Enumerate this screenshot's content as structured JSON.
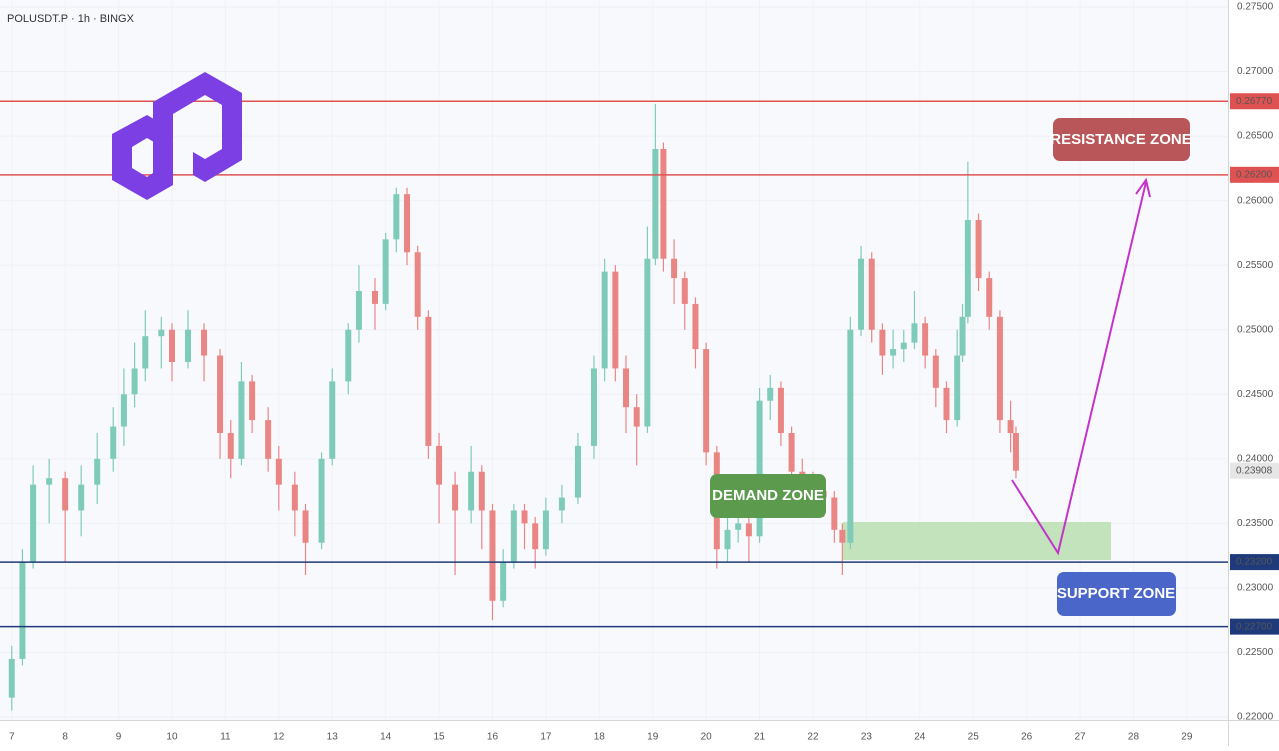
{
  "chart_data": {
    "type": "candlestick",
    "title": "POLUSDT.P · 1h · BINGX",
    "xlim": [
      6.78,
      29.77
    ],
    "xticks": [
      7,
      8,
      9,
      10,
      11,
      12,
      13,
      14,
      15,
      16,
      17,
      18,
      19,
      20,
      21,
      22,
      23,
      24,
      25,
      26,
      27,
      28,
      29
    ],
    "ylim": [
      0.22,
      0.275
    ],
    "yticks": [
      {
        "value": 0.22,
        "label": "0.22000"
      },
      {
        "value": 0.225,
        "label": "0.22500"
      },
      {
        "value": 0.23,
        "label": "0.23000"
      },
      {
        "value": 0.235,
        "label": "0.23500"
      },
      {
        "value": 0.24,
        "label": "0.24000"
      },
      {
        "value": 0.245,
        "label": "0.24500"
      },
      {
        "value": 0.25,
        "label": "0.25000"
      },
      {
        "value": 0.255,
        "label": "0.25500"
      },
      {
        "value": 0.26,
        "label": "0.26000"
      },
      {
        "value": 0.265,
        "label": "0.26500"
      },
      {
        "value": 0.27,
        "label": "0.27000"
      },
      {
        "value": 0.275,
        "label": "0.27500"
      }
    ],
    "up_color": "#7fcbb9",
    "down_color": "#e98683",
    "levels": [
      {
        "value": 0.2677,
        "label": "0.26770",
        "color": "#e05252"
      },
      {
        "value": 0.262,
        "label": "0.26200",
        "color": "#e05252"
      },
      {
        "value": 0.232,
        "label": "0.23200",
        "color": "#1f3a7a"
      },
      {
        "value": 0.227,
        "label": "0.22700",
        "color": "#1f3a7a"
      }
    ],
    "last_price": {
      "value": 0.23908,
      "label": "0.23908",
      "color": "#e6e6e6"
    },
    "annotations": [
      "RESISTANCE ZONE",
      "SUPPORT ZONE",
      "DEMAND ZONE"
    ],
    "x": [
      7.0,
      7.2,
      7.4,
      7.7,
      8.0,
      8.3,
      8.6,
      8.9,
      9.1,
      9.3,
      9.5,
      9.8,
      10.0,
      10.3,
      10.6,
      10.9,
      11.1,
      11.3,
      11.5,
      11.8,
      12.0,
      12.3,
      12.5,
      12.8,
      13.0,
      13.3,
      13.5,
      13.8,
      14.0,
      14.2,
      14.4,
      14.6,
      14.8,
      15.0,
      15.3,
      15.6,
      15.8,
      16.0,
      16.2,
      16.4,
      16.6,
      16.8,
      17.0,
      17.3,
      17.6,
      17.9,
      18.1,
      18.3,
      18.5,
      18.7,
      18.9,
      19.05,
      19.2,
      19.4,
      19.6,
      19.8,
      20.0,
      20.2,
      20.4,
      20.6,
      20.8,
      21.0,
      21.2,
      21.4,
      21.6,
      21.8,
      22.0,
      22.2,
      22.4,
      22.55,
      22.7,
      22.9,
      23.1,
      23.3,
      23.5,
      23.7,
      23.9,
      24.1,
      24.3,
      24.5,
      24.7,
      24.8,
      24.9,
      25.1,
      25.3,
      25.5,
      25.7,
      25.8
    ],
    "open": [
      0.2215,
      0.2245,
      0.232,
      0.238,
      0.2385,
      0.236,
      0.238,
      0.24,
      0.2425,
      0.245,
      0.247,
      0.2495,
      0.25,
      0.2475,
      0.25,
      0.248,
      0.242,
      0.24,
      0.246,
      0.243,
      0.24,
      0.238,
      0.236,
      0.2335,
      0.24,
      0.246,
      0.25,
      0.253,
      0.252,
      0.257,
      0.2605,
      0.256,
      0.251,
      0.241,
      0.238,
      0.236,
      0.239,
      0.236,
      0.229,
      0.232,
      0.236,
      0.235,
      0.233,
      0.236,
      0.237,
      0.241,
      0.247,
      0.2545,
      0.247,
      0.244,
      0.2425,
      0.2555,
      0.264,
      0.2555,
      0.254,
      0.252,
      0.2485,
      0.2405,
      0.233,
      0.2345,
      0.235,
      0.234,
      0.2445,
      0.2455,
      0.242,
      0.239,
      0.238,
      0.2375,
      0.237,
      0.2345,
      0.2335,
      0.25,
      0.2555,
      0.25,
      0.248,
      0.2485,
      0.249,
      0.2505,
      0.248,
      0.2455,
      0.243,
      0.248,
      0.251,
      0.2585,
      0.254,
      0.251,
      0.243,
      0.242
    ],
    "high": [
      0.2255,
      0.233,
      0.2395,
      0.24,
      0.239,
      0.2395,
      0.242,
      0.244,
      0.247,
      0.249,
      0.2515,
      0.251,
      0.2505,
      0.2515,
      0.2505,
      0.2485,
      0.243,
      0.2475,
      0.2465,
      0.244,
      0.241,
      0.239,
      0.2365,
      0.2405,
      0.247,
      0.2505,
      0.255,
      0.254,
      0.2575,
      0.261,
      0.261,
      0.2565,
      0.2515,
      0.242,
      0.239,
      0.241,
      0.2395,
      0.2365,
      0.233,
      0.2365,
      0.2365,
      0.2355,
      0.237,
      0.238,
      0.242,
      0.248,
      0.2555,
      0.255,
      0.248,
      0.245,
      0.258,
      0.2675,
      0.2645,
      0.257,
      0.2545,
      0.2525,
      0.249,
      0.241,
      0.2355,
      0.236,
      0.2355,
      0.2455,
      0.2465,
      0.246,
      0.2425,
      0.24,
      0.239,
      0.238,
      0.2375,
      0.235,
      0.251,
      0.2565,
      0.256,
      0.2505,
      0.25,
      0.25,
      0.253,
      0.251,
      0.2485,
      0.246,
      0.25,
      0.252,
      0.263,
      0.259,
      0.2545,
      0.2515,
      0.2445,
      0.2425
    ],
    "low": [
      0.2205,
      0.224,
      0.2315,
      0.235,
      0.232,
      0.234,
      0.2365,
      0.239,
      0.241,
      0.244,
      0.246,
      0.247,
      0.246,
      0.247,
      0.246,
      0.24,
      0.2385,
      0.2395,
      0.242,
      0.239,
      0.236,
      0.234,
      0.231,
      0.233,
      0.2395,
      0.245,
      0.249,
      0.25,
      0.2515,
      0.256,
      0.255,
      0.25,
      0.24,
      0.235,
      0.231,
      0.235,
      0.233,
      0.2275,
      0.2285,
      0.2315,
      0.233,
      0.2315,
      0.2325,
      0.235,
      0.2365,
      0.24,
      0.246,
      0.246,
      0.242,
      0.2395,
      0.242,
      0.255,
      0.2545,
      0.252,
      0.25,
      0.247,
      0.2395,
      0.2315,
      0.232,
      0.2335,
      0.232,
      0.2335,
      0.243,
      0.241,
      0.238,
      0.237,
      0.236,
      0.2355,
      0.2335,
      0.231,
      0.233,
      0.2495,
      0.249,
      0.2465,
      0.247,
      0.2475,
      0.2485,
      0.247,
      0.244,
      0.242,
      0.2425,
      0.2475,
      0.2505,
      0.253,
      0.25,
      0.242,
      0.2405,
      0.2385
    ],
    "close": [
      0.2245,
      0.232,
      0.238,
      0.2385,
      0.236,
      0.238,
      0.24,
      0.2425,
      0.245,
      0.247,
      0.2495,
      0.25,
      0.2475,
      0.25,
      0.248,
      0.242,
      0.24,
      0.246,
      0.243,
      0.24,
      0.238,
      0.236,
      0.2335,
      0.24,
      0.246,
      0.25,
      0.253,
      0.252,
      0.257,
      0.2605,
      0.256,
      0.251,
      0.241,
      0.238,
      0.236,
      0.239,
      0.236,
      0.229,
      0.232,
      0.236,
      0.235,
      0.233,
      0.236,
      0.237,
      0.241,
      0.247,
      0.2545,
      0.247,
      0.244,
      0.2425,
      0.2555,
      0.264,
      0.2555,
      0.254,
      0.252,
      0.2485,
      0.2405,
      0.233,
      0.2345,
      0.235,
      0.234,
      0.2445,
      0.2455,
      0.242,
      0.239,
      0.238,
      0.2375,
      0.237,
      0.2345,
      0.2335,
      0.25,
      0.2555,
      0.25,
      0.248,
      0.2485,
      0.249,
      0.2505,
      0.248,
      0.2455,
      0.243,
      0.248,
      0.251,
      0.2585,
      0.254,
      0.251,
      0.243,
      0.242,
      0.23908
    ]
  }
}
